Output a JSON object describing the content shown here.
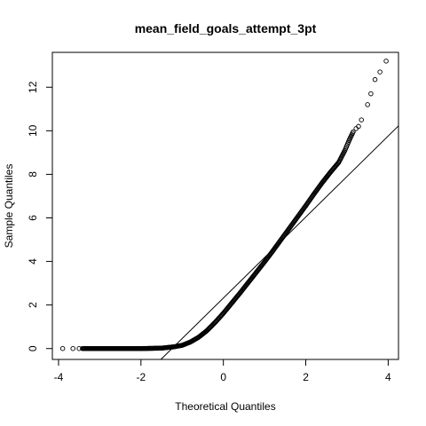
{
  "chart_data": {
    "type": "scatter",
    "title": "mean_field_goals_attempt_3pt",
    "xlabel": "Theoretical Quantiles",
    "ylabel": "Sample Quantiles",
    "xlim": [
      -4.15,
      4.25
    ],
    "ylim": [
      -0.5,
      13.6
    ],
    "x_ticks": [
      -4,
      -2,
      0,
      2,
      4
    ],
    "y_ticks": [
      0,
      2,
      4,
      6,
      8,
      10,
      12
    ],
    "grid": false,
    "legend": "none",
    "reference_line": {
      "intercept": 2.32,
      "slope": 1.86
    },
    "quantile_curve": {
      "x": [
        -3.4,
        -3.0,
        -2.5,
        -2.0,
        -1.5,
        -1.2,
        -1.0,
        -0.8,
        -0.6,
        -0.4,
        -0.2,
        0.0,
        0.2,
        0.4,
        0.6,
        0.8,
        1.0,
        1.2,
        1.4,
        1.6,
        1.8,
        2.0,
        2.2,
        2.4,
        2.6,
        2.8,
        2.95,
        3.05,
        3.15
      ],
      "y": [
        0.0,
        0.0,
        0.0,
        0.0,
        0.02,
        0.08,
        0.15,
        0.3,
        0.52,
        0.82,
        1.2,
        1.62,
        2.08,
        2.54,
        3.02,
        3.5,
        3.98,
        4.48,
        5.0,
        5.52,
        6.04,
        6.56,
        7.1,
        7.62,
        8.1,
        8.55,
        9.1,
        9.55,
        9.95
      ]
    },
    "tail_points": {
      "x": [
        -3.9,
        -3.65,
        -3.5,
        -3.42,
        3.22,
        3.28,
        3.35,
        3.5,
        3.58,
        3.68,
        3.8,
        3.95
      ],
      "y": [
        0.0,
        0.0,
        0.0,
        0.0,
        10.1,
        10.2,
        10.5,
        11.2,
        11.7,
        12.35,
        12.7,
        13.2
      ]
    }
  }
}
